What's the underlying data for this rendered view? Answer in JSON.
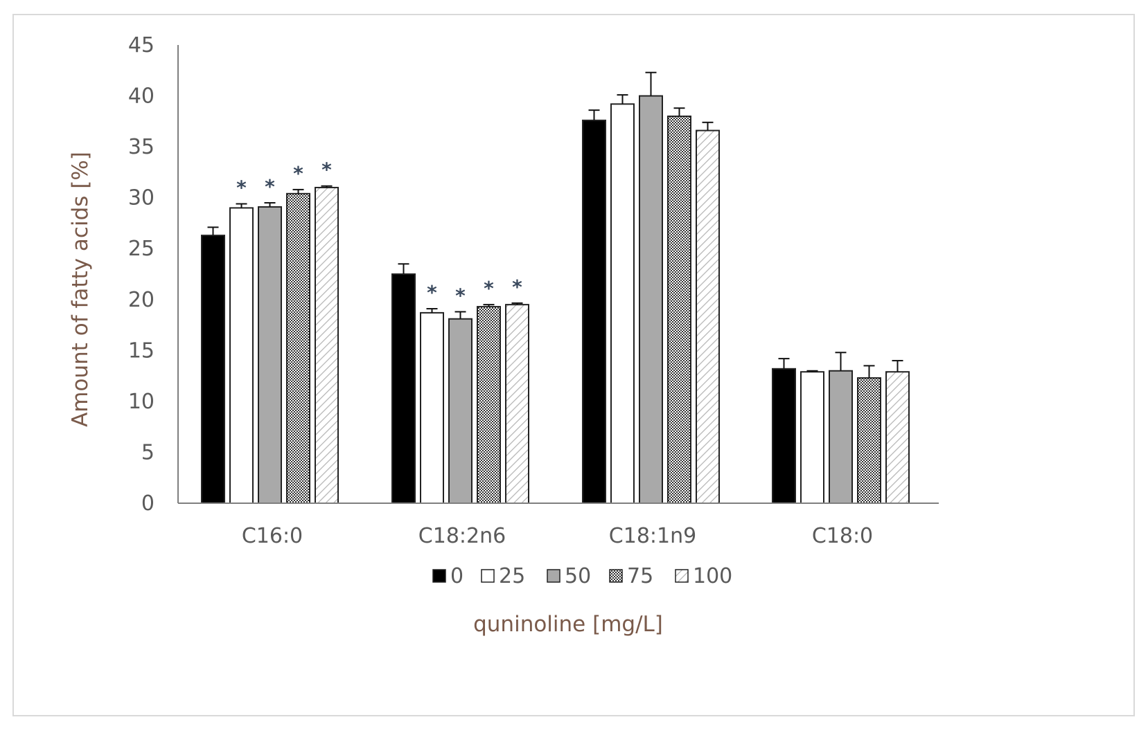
{
  "chart_data": {
    "type": "bar",
    "ylabel": "Amount of fatty acids [%]",
    "xlabel": "quninoline [mg/L]",
    "ylim": [
      0,
      45
    ],
    "yticks": [
      0,
      5,
      10,
      15,
      20,
      25,
      30,
      35,
      40,
      45
    ],
    "categories": [
      "C16:0",
      "C18:2n6",
      "C18:1n9",
      "C18:0"
    ],
    "series": [
      {
        "name": "0",
        "pattern": "solid-black",
        "values": [
          26.3,
          22.5,
          37.6,
          13.2
        ],
        "errors": [
          0.8,
          1.0,
          1.0,
          1.0
        ]
      },
      {
        "name": "25",
        "pattern": "white",
        "values": [
          29.0,
          18.7,
          39.2,
          12.9
        ],
        "errors": [
          0.4,
          0.4,
          0.9,
          0.1
        ]
      },
      {
        "name": "50",
        "pattern": "gray",
        "values": [
          29.1,
          18.1,
          40.0,
          13.0
        ],
        "errors": [
          0.4,
          0.7,
          2.3,
          1.8
        ]
      },
      {
        "name": "75",
        "pattern": "dotted",
        "values": [
          30.4,
          19.3,
          38.0,
          12.3
        ],
        "errors": [
          0.4,
          0.2,
          0.8,
          1.2
        ]
      },
      {
        "name": "100",
        "pattern": "hatched",
        "values": [
          31.0,
          19.5,
          36.6,
          12.9
        ],
        "errors": [
          0.15,
          0.15,
          0.8,
          1.1
        ]
      }
    ],
    "significance": {
      "marker": "*",
      "flags": [
        [
          false,
          true,
          true,
          true,
          true
        ],
        [
          false,
          true,
          true,
          true,
          true
        ],
        [
          false,
          false,
          false,
          false,
          false
        ],
        [
          false,
          false,
          false,
          false,
          false
        ]
      ]
    },
    "legend": {
      "position": "bottom"
    },
    "colors": {
      "axis": "#7f7f7f",
      "tick_text": "#5a5a5a",
      "label_text": "#7a5a4a",
      "bar_black": "#000000",
      "bar_gray": "#a9a9a9",
      "bar_outline": "#222222",
      "star": "#3b4a5e"
    }
  }
}
